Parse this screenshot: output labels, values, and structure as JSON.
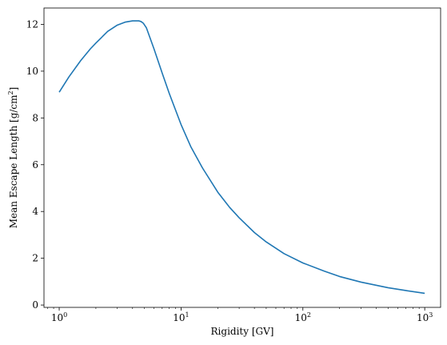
{
  "chart_data": {
    "type": "line",
    "title": "",
    "xlabel": "Rigidity [GV]",
    "ylabel_main": "Mean Escape Length [g/cm",
    "ylabel_sup": "2",
    "ylabel_tail": "]",
    "xscale": "log",
    "xlim": [
      0.75,
      1350
    ],
    "ylim": [
      -0.1,
      12.7
    ],
    "grid": false,
    "x_ticks": [
      {
        "value": 1,
        "base": "10",
        "exp": "0"
      },
      {
        "value": 10,
        "base": "10",
        "exp": "1"
      },
      {
        "value": 100,
        "base": "10",
        "exp": "2"
      },
      {
        "value": 1000,
        "base": "10",
        "exp": "3"
      }
    ],
    "y_ticks": [
      {
        "value": 0,
        "label": "0"
      },
      {
        "value": 2,
        "label": "2"
      },
      {
        "value": 4,
        "label": "4"
      },
      {
        "value": 6,
        "label": "6"
      },
      {
        "value": 8,
        "label": "8"
      },
      {
        "value": 10,
        "label": "10"
      },
      {
        "value": 12,
        "label": "12"
      }
    ],
    "series": [
      {
        "color": "#1f77b4",
        "x": [
          1.0,
          1.2,
          1.5,
          1.8,
          2.0,
          2.5,
          3.0,
          3.5,
          4.0,
          4.5,
          4.7,
          4.9,
          5.2,
          6.0,
          7.0,
          8.0,
          10,
          12,
          15,
          20,
          25,
          30,
          40,
          50,
          70,
          100,
          150,
          200,
          300,
          500,
          700,
          1000
        ],
        "y": [
          9.1,
          9.75,
          10.45,
          10.95,
          11.2,
          11.7,
          11.97,
          12.1,
          12.15,
          12.15,
          12.12,
          12.05,
          11.85,
          10.95,
          9.92,
          9.05,
          7.72,
          6.78,
          5.86,
          4.83,
          4.18,
          3.73,
          3.1,
          2.7,
          2.2,
          1.8,
          1.45,
          1.22,
          0.98,
          0.74,
          0.62,
          0.5
        ]
      }
    ]
  }
}
